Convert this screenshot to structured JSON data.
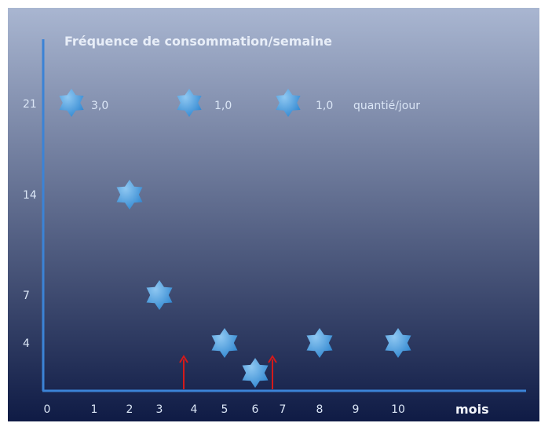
{
  "chart_data": {
    "type": "scatter",
    "title": "Fréquence de consommation/semaine",
    "xlabel": "mois",
    "ylabel": "",
    "x_ticks": [
      "0",
      "1",
      "2",
      "3",
      "4",
      "5",
      "6",
      "7",
      "8",
      "9",
      "10"
    ],
    "y_ticks": [
      "4",
      "7",
      "14",
      "21"
    ],
    "points": [
      {
        "x": 2,
        "y": 14
      },
      {
        "x": 3,
        "y": 7
      },
      {
        "x": 5,
        "y": 4
      },
      {
        "x": 6,
        "y": 1.5
      },
      {
        "x": 8,
        "y": 4
      },
      {
        "x": 10,
        "y": 4
      }
    ],
    "legend": [
      {
        "value": "3,0"
      },
      {
        "value": "1,0"
      },
      {
        "value": "1,0",
        "suffix": "quantié/jour"
      }
    ],
    "arrows": [
      {
        "x": 4
      },
      {
        "x": 7
      }
    ],
    "colors": {
      "background_top": "#a9b6d1",
      "background_bottom": "#0f1b45",
      "axis": "#3b83d6",
      "star_light": "#8fc8f2",
      "star_dark": "#2f86d0",
      "arrow": "#d41a1a"
    }
  }
}
